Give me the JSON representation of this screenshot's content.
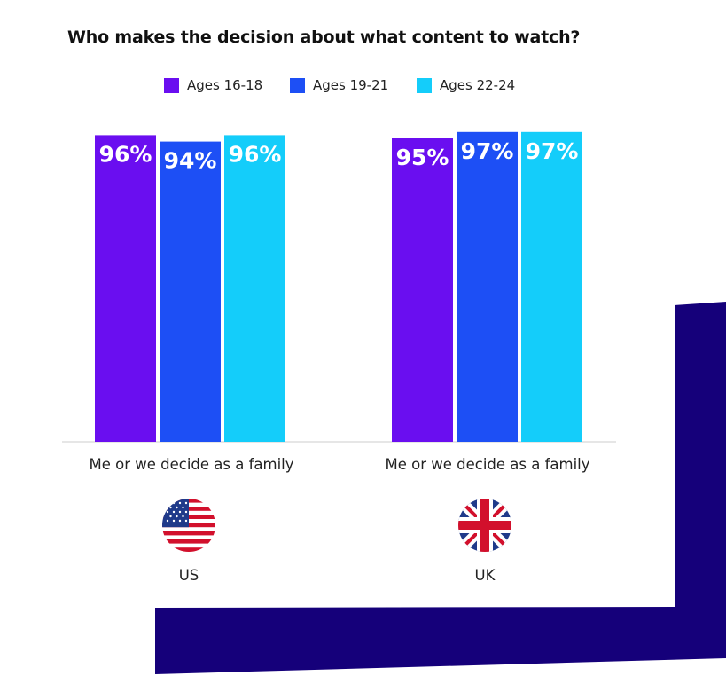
{
  "title": "Who makes the decision about what content to watch?",
  "colors": {
    "accent_dark": "#15007a",
    "axis": "#cccccc"
  },
  "legend": [
    {
      "label": "Ages 16-18",
      "color": "#6a0ef0"
    },
    {
      "label": "Ages 19-21",
      "color": "#1d4ff5"
    },
    {
      "label": "Ages 22-24",
      "color": "#14cdfa"
    }
  ],
  "chart_data": {
    "type": "bar",
    "title": "Who makes the decision about what content to watch?",
    "xlabel": "",
    "ylabel": "",
    "ylim": [
      0,
      100
    ],
    "grid": false,
    "legend_position": "top",
    "groups": [
      {
        "category": "Me or we decide as a family",
        "country": "US",
        "labels": [
          "96%",
          "94%",
          "96%"
        ]
      },
      {
        "category": "Me or we decide as a family",
        "country": "UK",
        "labels": [
          "95%",
          "97%",
          "97%"
        ]
      }
    ],
    "series": [
      {
        "name": "Ages 16-18",
        "values": [
          96,
          95
        ]
      },
      {
        "name": "Ages 19-21",
        "values": [
          94,
          97
        ]
      },
      {
        "name": "Ages 22-24",
        "values": [
          96,
          97
        ]
      }
    ]
  },
  "flags": [
    {
      "country": "US",
      "icon": "us-flag-icon"
    },
    {
      "country": "UK",
      "icon": "uk-flag-icon"
    }
  ]
}
